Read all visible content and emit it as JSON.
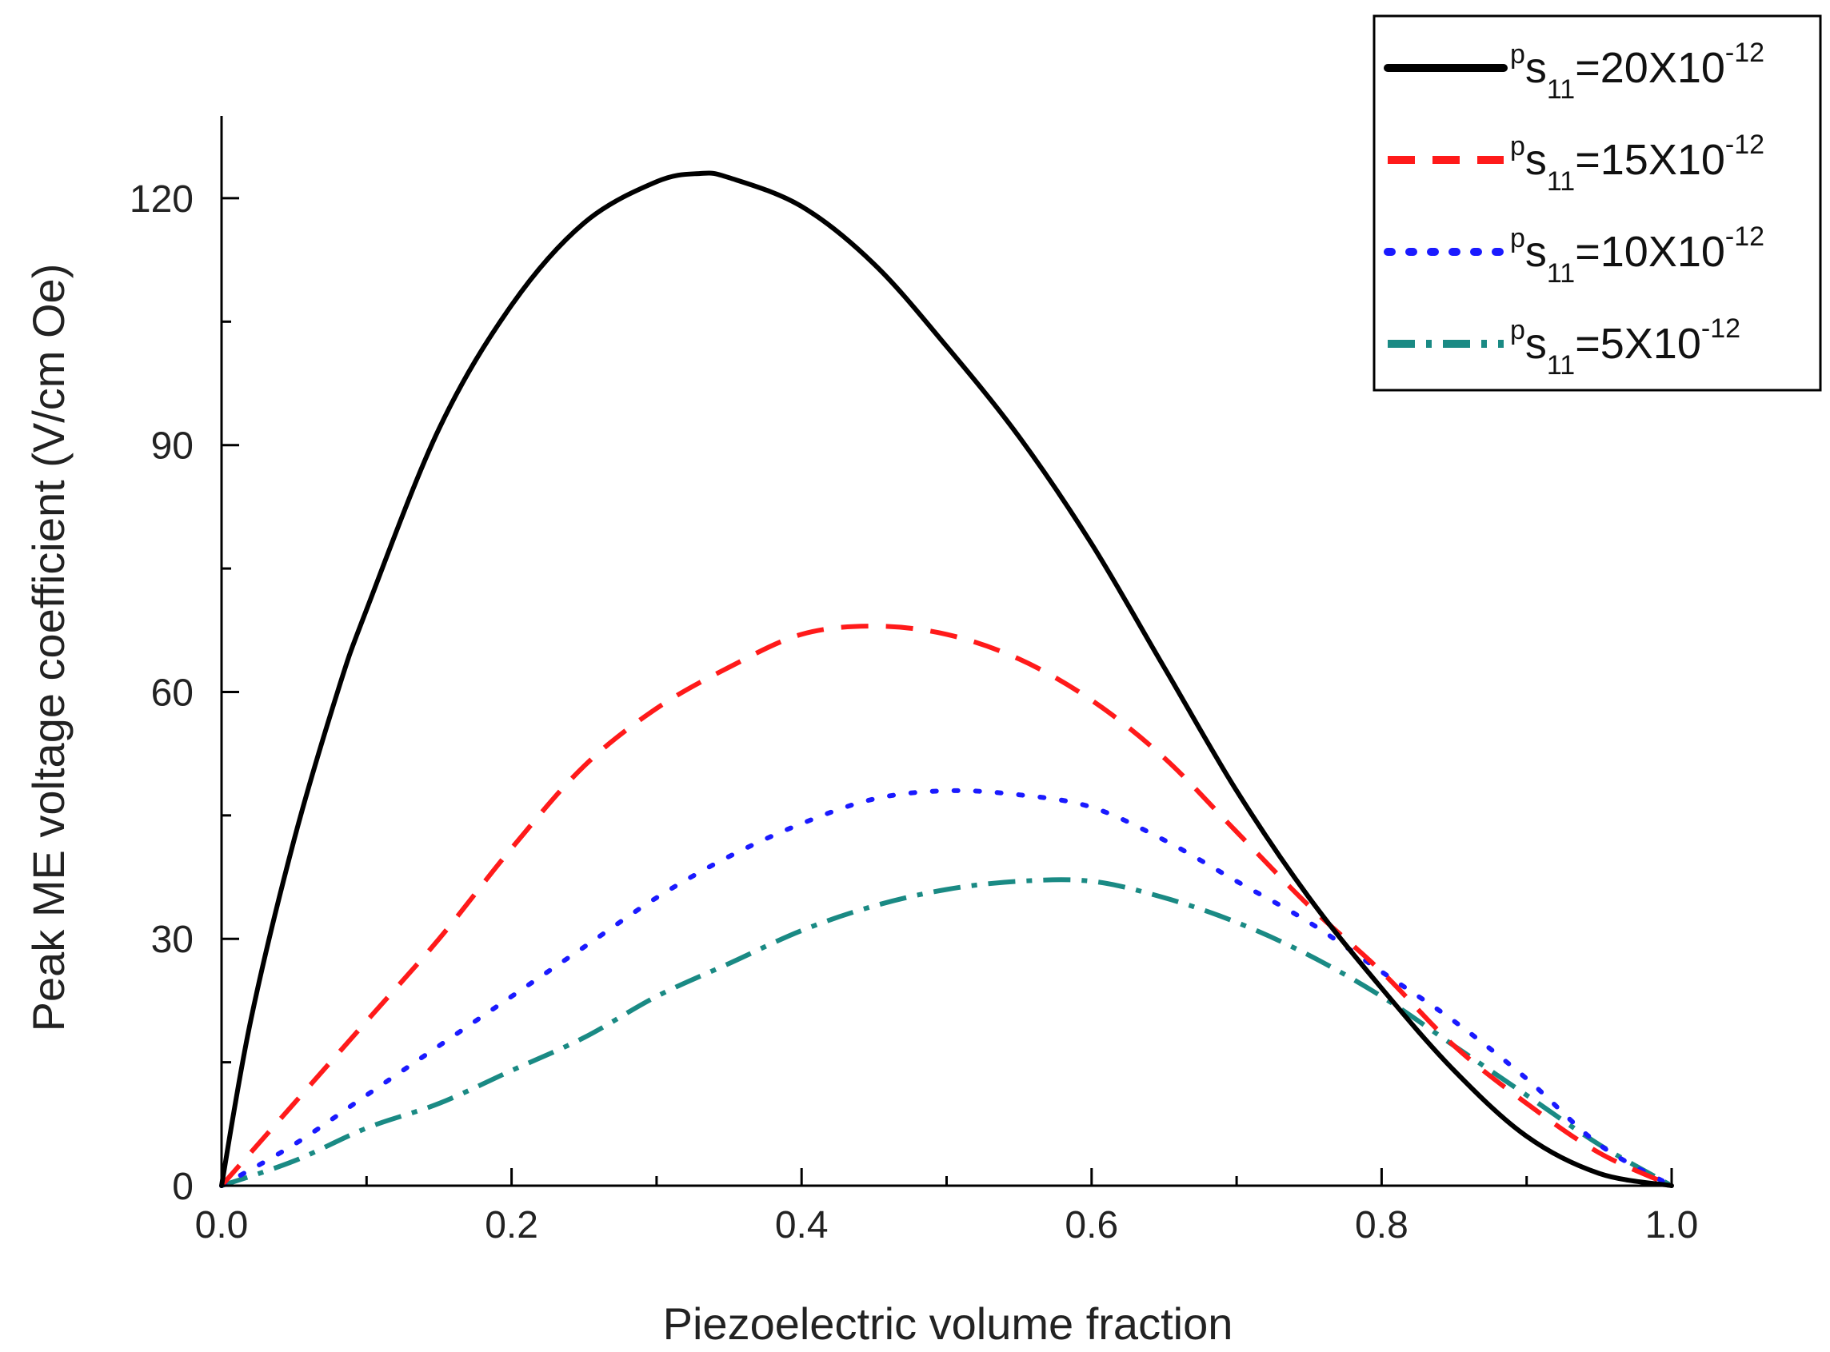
{
  "chart_data": {
    "type": "line",
    "title": "",
    "xlabel": "Piezoelectric volume fraction",
    "ylabel": "Peak ME voltage coefficient (V/cm Oe)",
    "xlim": [
      0.0,
      1.0
    ],
    "ylim": [
      0,
      130
    ],
    "x_ticks": [
      0.0,
      0.2,
      0.4,
      0.6,
      0.8,
      1.0
    ],
    "x_tick_labels": [
      "0.0",
      "0.2",
      "0.4",
      "0.6",
      "0.8",
      "1.0"
    ],
    "y_ticks": [
      0,
      30,
      60,
      90,
      120
    ],
    "y_tick_labels": [
      "0",
      "30",
      "60",
      "90",
      "120"
    ],
    "legend_position": "top-right",
    "legend_symbol": "p",
    "legend_base": "s",
    "legend_subscript": "11",
    "series": [
      {
        "name": "pS11=20X10-12",
        "legend_value": "20",
        "legend_exp": "-12",
        "color": "#000000",
        "style": "solid",
        "x": [
          0.0,
          0.02,
          0.05,
          0.08,
          0.1,
          0.15,
          0.2,
          0.25,
          0.3,
          0.33,
          0.35,
          0.4,
          0.45,
          0.5,
          0.55,
          0.6,
          0.65,
          0.7,
          0.75,
          0.8,
          0.85,
          0.9,
          0.95,
          1.0
        ],
        "y": [
          0,
          20,
          42,
          60,
          70,
          92,
          107,
          117,
          122,
          123,
          122.5,
          119,
          112,
          102,
          91,
          78,
          63,
          48,
          35,
          24,
          14,
          6,
          1.5,
          0
        ]
      },
      {
        "name": "pS11=15X10-12",
        "legend_value": "15",
        "legend_exp": "-12",
        "color": "#ff1a1a",
        "style": "dashed",
        "x": [
          0.0,
          0.05,
          0.1,
          0.15,
          0.2,
          0.25,
          0.3,
          0.35,
          0.4,
          0.45,
          0.5,
          0.55,
          0.6,
          0.65,
          0.7,
          0.75,
          0.8,
          0.85,
          0.9,
          0.95,
          1.0
        ],
        "y": [
          0,
          10,
          20,
          30,
          41,
          51,
          58,
          63,
          67,
          68,
          67,
          64,
          59,
          52,
          43,
          34,
          26,
          17,
          10,
          4,
          0
        ]
      },
      {
        "name": "pS11=10X10-12",
        "legend_value": "10",
        "legend_exp": "-12",
        "color": "#1a1aff",
        "style": "dotted",
        "x": [
          0.0,
          0.05,
          0.1,
          0.15,
          0.2,
          0.25,
          0.3,
          0.35,
          0.4,
          0.45,
          0.5,
          0.55,
          0.6,
          0.65,
          0.7,
          0.75,
          0.8,
          0.85,
          0.9,
          0.95,
          1.0
        ],
        "y": [
          0,
          5,
          11,
          17,
          23,
          29,
          35,
          40,
          44,
          47,
          48,
          47.5,
          46,
          42,
          37,
          32,
          26,
          20,
          13,
          5,
          0
        ]
      },
      {
        "name": "pS11=5X10-12",
        "legend_value": "5",
        "legend_exp": "-12",
        "color": "#1a8a84",
        "style": "dashdot",
        "x": [
          0.0,
          0.05,
          0.1,
          0.15,
          0.2,
          0.25,
          0.3,
          0.35,
          0.4,
          0.45,
          0.5,
          0.55,
          0.6,
          0.65,
          0.7,
          0.75,
          0.8,
          0.85,
          0.9,
          0.95,
          1.0
        ],
        "y": [
          0,
          3,
          7,
          10,
          14,
          18,
          23,
          27,
          31,
          34,
          36,
          37,
          37,
          35,
          32,
          28,
          23,
          17,
          11,
          5,
          0
        ]
      }
    ]
  }
}
